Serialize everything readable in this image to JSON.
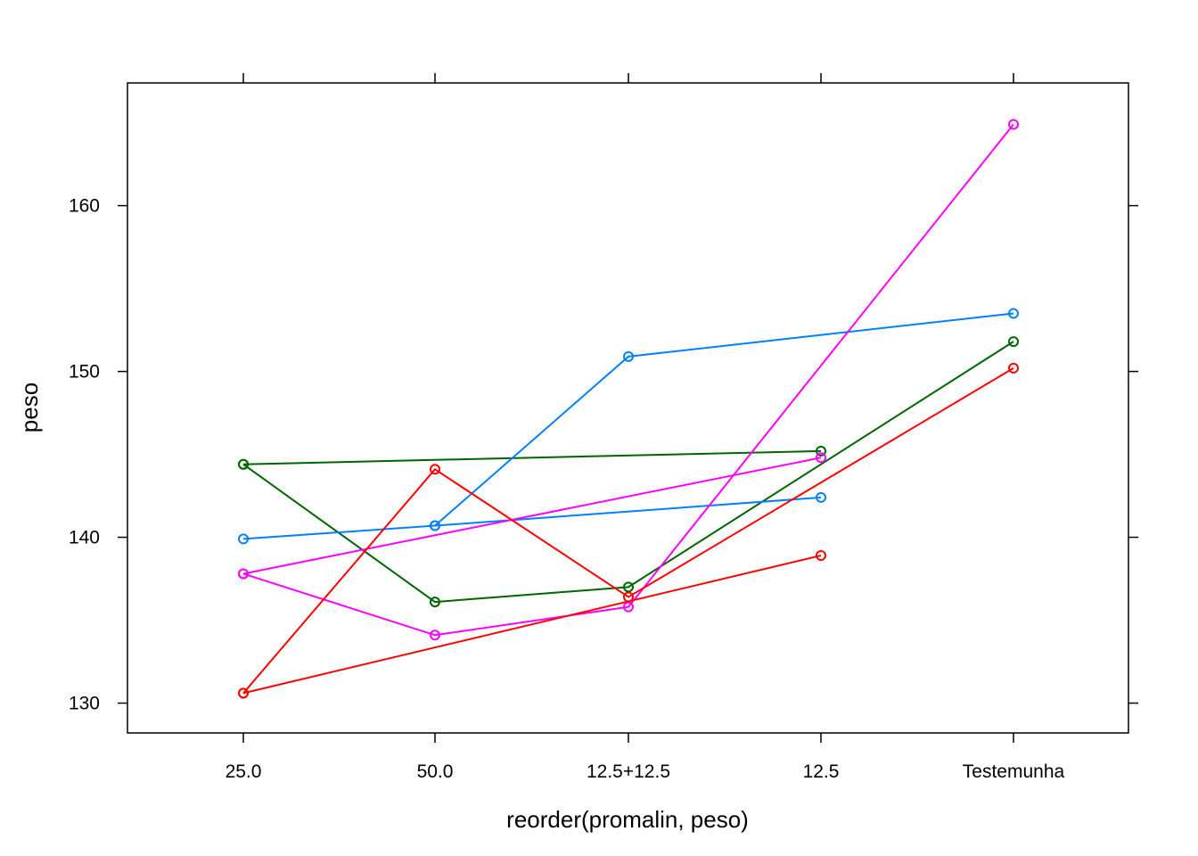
{
  "chart_data": {
    "type": "line",
    "title": "",
    "xlabel": "reorder(promalin, peso)",
    "ylabel": "peso",
    "categories": [
      "25.0",
      "50.0",
      "12.5+12.5",
      "12.5",
      "Testemunha"
    ],
    "ylim": [
      128.2,
      167.4
    ],
    "yticks": [
      130,
      140,
      150,
      160
    ],
    "grid": false,
    "legend": "none",
    "series": [
      {
        "color": "#006400",
        "points": [
          {
            "x": "25.0",
            "y": 144.4
          },
          {
            "x": "12.5",
            "y": 145.2
          }
        ]
      },
      {
        "color": "#006400",
        "points": [
          {
            "x": "25.0",
            "y": 144.4
          },
          {
            "x": "50.0",
            "y": 136.1
          },
          {
            "x": "12.5+12.5",
            "y": 137.0
          },
          {
            "x": "Testemunha",
            "y": 151.8
          }
        ]
      },
      {
        "color": "#0080FF",
        "points": [
          {
            "x": "25.0",
            "y": 139.9
          },
          {
            "x": "50.0",
            "y": 140.7
          },
          {
            "x": "12.5",
            "y": 142.4
          }
        ]
      },
      {
        "color": "#0080FF",
        "points": [
          {
            "x": "50.0",
            "y": 140.7
          },
          {
            "x": "12.5+12.5",
            "y": 150.9
          },
          {
            "x": "Testemunha",
            "y": 153.5
          }
        ]
      },
      {
        "color": "#FF00FF",
        "points": [
          {
            "x": "25.0",
            "y": 137.8
          },
          {
            "x": "12.5",
            "y": 144.8
          }
        ]
      },
      {
        "color": "#FF00FF",
        "points": [
          {
            "x": "25.0",
            "y": 137.8
          },
          {
            "x": "50.0",
            "y": 134.1
          },
          {
            "x": "12.5+12.5",
            "y": 135.8
          },
          {
            "x": "Testemunha",
            "y": 164.9
          }
        ]
      },
      {
        "color": "#FF0000",
        "points": [
          {
            "x": "25.0",
            "y": 130.6
          },
          {
            "x": "50.0",
            "y": 144.1
          },
          {
            "x": "12.5+12.5",
            "y": 136.4
          },
          {
            "x": "Testemunha",
            "y": 150.2
          }
        ]
      },
      {
        "color": "#FF0000",
        "points": [
          {
            "x": "25.0",
            "y": 130.6
          },
          {
            "x": "12.5",
            "y": 138.9
          }
        ]
      }
    ]
  }
}
